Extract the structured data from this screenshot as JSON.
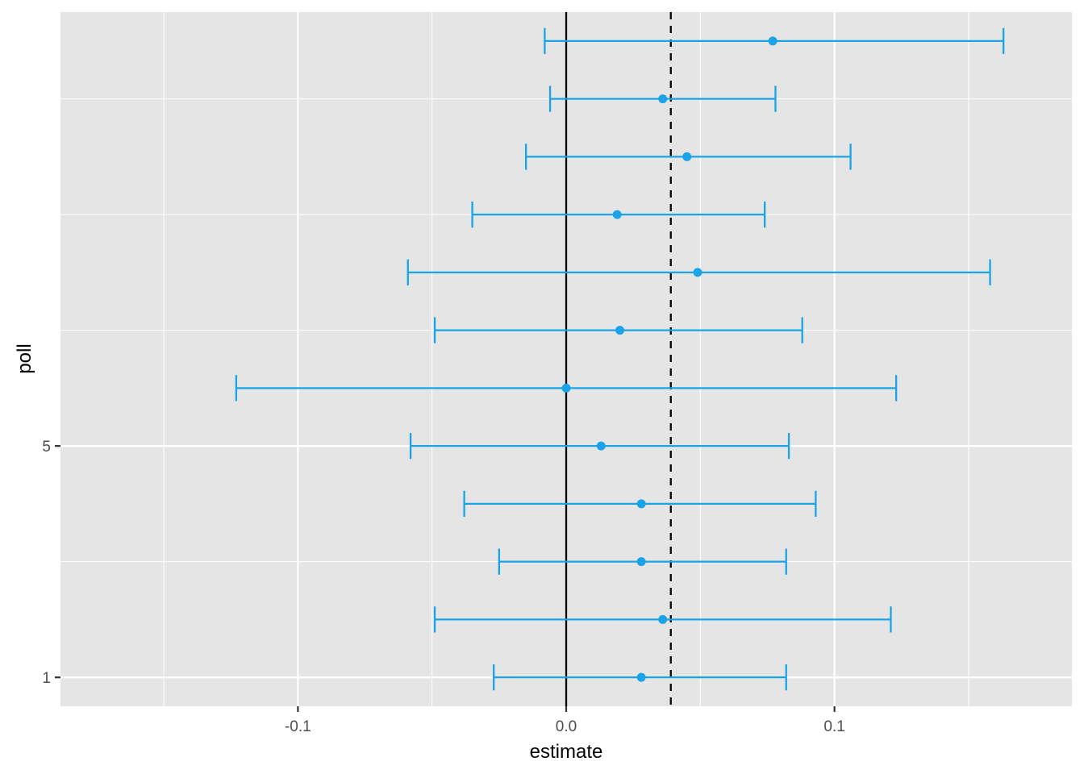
{
  "chart_data": {
    "type": "errorbar",
    "title": "",
    "xlabel": "estimate",
    "ylabel": "poll",
    "xlim": [
      -0.1885,
      0.1885
    ],
    "ylim": [
      0.5,
      12.5
    ],
    "x_ticks": [
      -0.1,
      0.0,
      0.1
    ],
    "x_tick_labels": [
      "-0.1",
      "0.0",
      "0.1"
    ],
    "x_minor_ticks": [
      -0.15,
      -0.05,
      0.05,
      0.15
    ],
    "y_ticks": [
      1,
      5
    ],
    "y_tick_labels": [
      "1",
      "5"
    ],
    "y_minor_ticks": [
      3,
      7,
      9,
      11
    ],
    "reference_lines": [
      {
        "x": 0.0,
        "style": "solid",
        "color": "#000000"
      },
      {
        "x": 0.039,
        "style": "dashed",
        "color": "#000000"
      }
    ],
    "point_color": "#1AA3E6",
    "panel_background": "#E5E5E5",
    "grid": true,
    "series": [
      {
        "poll": [
          1,
          2,
          3,
          4,
          5,
          6,
          7,
          8,
          9,
          10,
          11,
          12
        ],
        "estimate": [
          0.028,
          0.036,
          0.028,
          0.028,
          0.013,
          0.0,
          0.02,
          0.049,
          0.019,
          0.045,
          0.036,
          0.077
        ],
        "lower": [
          -0.027,
          -0.049,
          -0.025,
          -0.038,
          -0.058,
          -0.123,
          -0.049,
          -0.059,
          -0.035,
          -0.015,
          -0.006,
          -0.008
        ],
        "upper": [
          0.082,
          0.121,
          0.082,
          0.093,
          0.083,
          0.123,
          0.088,
          0.158,
          0.074,
          0.106,
          0.078,
          0.163
        ]
      }
    ]
  }
}
